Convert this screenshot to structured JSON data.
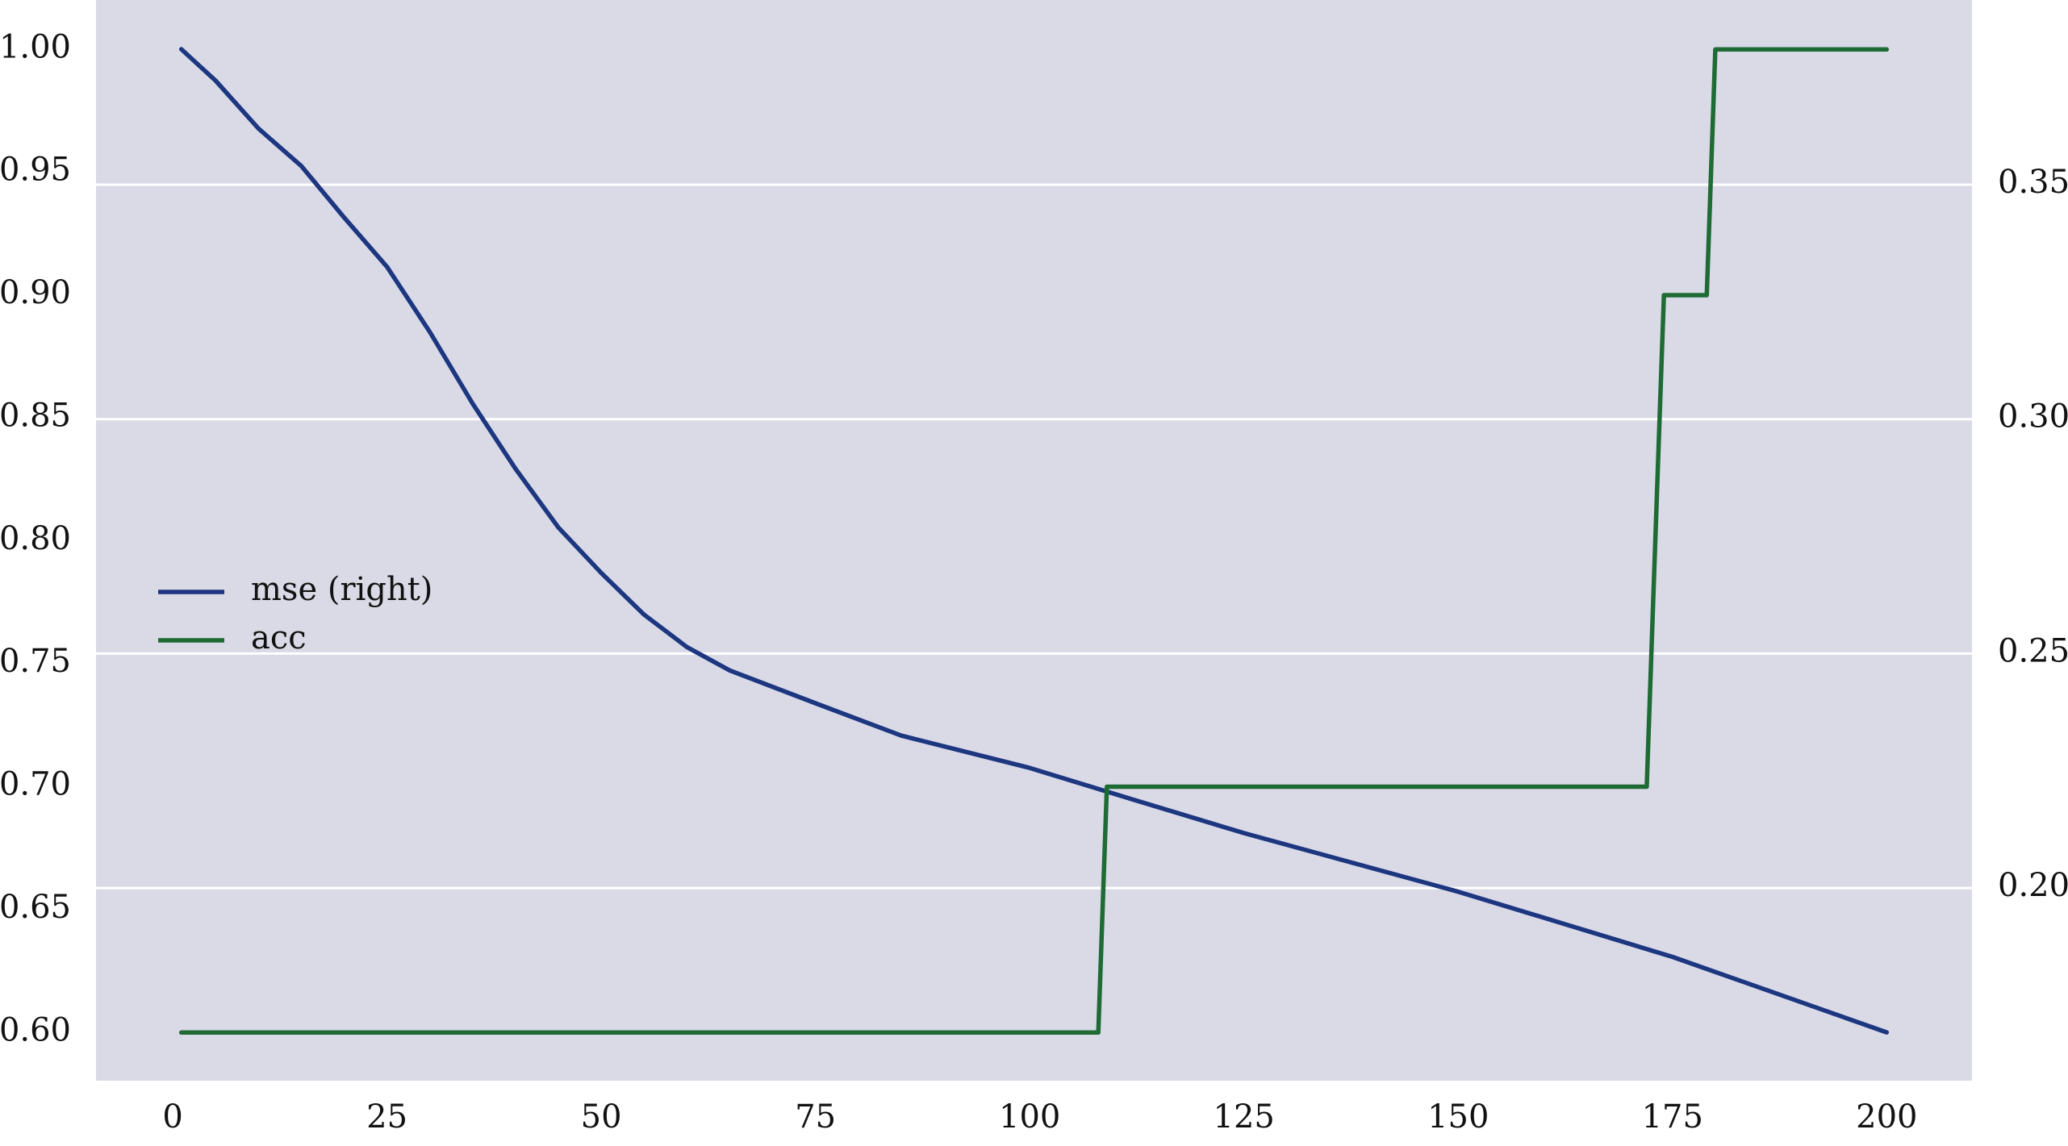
{
  "chart_data": {
    "type": "line",
    "background": "#dadae7",
    "grid": true,
    "grid_axis": "y2",
    "grid_color": "#ffffff",
    "legend": "center left",
    "xlim": [
      -8.95,
      209.95
    ],
    "xticks": [
      0,
      25,
      50,
      75,
      100,
      125,
      150,
      175,
      200
    ],
    "ylim": [
      0.5804,
      1.0201
    ],
    "yticks": [
      {
        "value": 0.6,
        "label": "0.60"
      },
      {
        "value": 0.65,
        "label": "0.65"
      },
      {
        "value": 0.7,
        "label": "0.70"
      },
      {
        "value": 0.75,
        "label": "0.75"
      },
      {
        "value": 0.8,
        "label": "0.80"
      },
      {
        "value": 0.85,
        "label": "0.85"
      },
      {
        "value": 0.9,
        "label": "0.90"
      },
      {
        "value": 0.95,
        "label": "0.95"
      },
      {
        "value": 1.0,
        "label": "1.00"
      }
    ],
    "y2lim": [
      0.1589,
      0.3894
    ],
    "y2ticks": [
      {
        "value": 0.2,
        "label": "0.20"
      },
      {
        "value": 0.25,
        "label": "0.25"
      },
      {
        "value": 0.3,
        "label": "0.30"
      },
      {
        "value": 0.35,
        "label": "0.35"
      }
    ],
    "series": [
      {
        "name": "mse (right)",
        "color": "#1c3680",
        "axis": "y2",
        "x": [
          1,
          5,
          10,
          15,
          20,
          25,
          30,
          35,
          40,
          45,
          50,
          55,
          60,
          65,
          75,
          85,
          100,
          110,
          125,
          150,
          175,
          200
        ],
        "values": [
          0.3789,
          0.3722,
          0.362,
          0.354,
          0.343,
          0.3325,
          0.3186,
          0.3033,
          0.2894,
          0.2769,
          0.2672,
          0.2583,
          0.2514,
          0.2464,
          0.2394,
          0.2325,
          0.2256,
          0.22,
          0.2117,
          0.1992,
          0.1853,
          0.1692
        ]
      },
      {
        "name": "acc",
        "color": "#1e6b34",
        "x": [
          1,
          108,
          109,
          172,
          173,
          174,
          179,
          180,
          200
        ],
        "values": [
          0.6,
          0.6,
          0.7,
          0.7,
          0.8,
          0.9,
          0.9,
          1.0,
          1.0
        ]
      }
    ]
  }
}
